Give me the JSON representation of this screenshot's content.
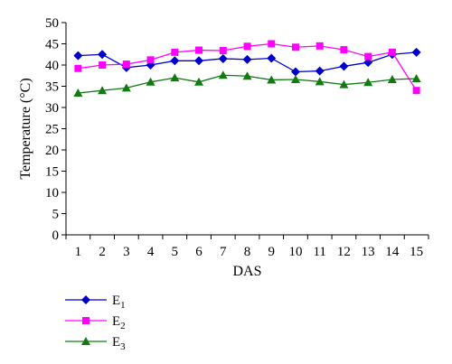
{
  "chart_data": {
    "type": "line",
    "title": "",
    "xlabel": "DAS",
    "ylabel": "Temperature (°C)",
    "ylim": [
      0,
      50
    ],
    "yticks": [
      0,
      5,
      10,
      15,
      20,
      25,
      30,
      35,
      40,
      45,
      50
    ],
    "x": [
      1,
      2,
      3,
      4,
      5,
      6,
      7,
      8,
      9,
      10,
      11,
      12,
      13,
      14,
      15
    ],
    "grid": false,
    "legend_position": "bottom-left",
    "series": [
      {
        "name": "E1",
        "name_base": "E",
        "name_sub": "1",
        "color": "#0000cc",
        "marker": "diamond",
        "values": [
          42.2,
          42.5,
          39.4,
          40.0,
          41.0,
          41.0,
          41.5,
          41.3,
          41.6,
          38.4,
          38.6,
          39.7,
          40.6,
          42.5,
          43.0
        ]
      },
      {
        "name": "E2",
        "name_base": "E",
        "name_sub": "2",
        "color": "#ff00ff",
        "marker": "square",
        "values": [
          39.2,
          40.0,
          40.2,
          41.2,
          43.0,
          43.5,
          43.4,
          44.4,
          45.0,
          44.2,
          44.5,
          43.6,
          42.0,
          43.0,
          34.0
        ]
      },
      {
        "name": "E3",
        "name_base": "E",
        "name_sub": "3",
        "color": "#117a11",
        "marker": "triangle",
        "values": [
          33.4,
          34.0,
          34.6,
          36.0,
          37.0,
          36.0,
          37.6,
          37.4,
          36.5,
          36.6,
          36.1,
          35.4,
          35.9,
          36.6,
          36.8
        ]
      }
    ]
  }
}
